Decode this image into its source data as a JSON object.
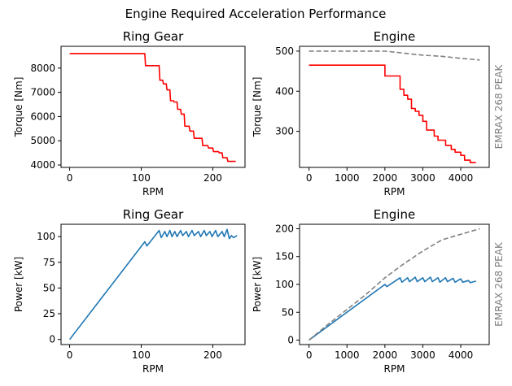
{
  "figure": {
    "suptitle": "Engine Required Acceleration Performance"
  },
  "chart_data": [
    {
      "id": "ring-torque",
      "type": "line",
      "title": "Ring Gear",
      "xlabel": "RPM",
      "ylabel": "Torque [Nm]",
      "xlim": [
        -12,
        245
      ],
      "ylim": [
        3900,
        8900
      ],
      "xticks": [
        0,
        100,
        200
      ],
      "yticks": [
        4000,
        5000,
        6000,
        7000,
        8000
      ],
      "side_label": "",
      "series": [
        {
          "color": "#ff0000",
          "dashed": false,
          "x": [
            0,
            105,
            106,
            125,
            126,
            130,
            131,
            135,
            136,
            140,
            141,
            145,
            146,
            150,
            151,
            155,
            156,
            160,
            161,
            167,
            168,
            173,
            174,
            185,
            186,
            193,
            194,
            200,
            201,
            208,
            209,
            213,
            214,
            220,
            221,
            224,
            225,
            232
          ],
          "y": [
            8600,
            8600,
            8100,
            8100,
            7500,
            7500,
            7350,
            7350,
            7100,
            7100,
            6650,
            6650,
            6600,
            6600,
            6300,
            6300,
            6100,
            6100,
            5600,
            5600,
            5400,
            5400,
            5100,
            5100,
            4800,
            4800,
            4700,
            4700,
            4550,
            4550,
            4500,
            4500,
            4300,
            4300,
            4150,
            4150,
            4150,
            4150
          ]
        }
      ]
    },
    {
      "id": "engine-torque",
      "type": "line",
      "title": "Engine",
      "xlabel": "RPM",
      "ylabel": "Torque [Nm]",
      "xlim": [
        -250,
        4750
      ],
      "ylim": [
        210,
        512
      ],
      "xticks": [
        0,
        1000,
        2000,
        3000,
        4000
      ],
      "yticks": [
        300,
        400,
        500
      ],
      "side_label": "EMRAX 268 PEAK",
      "series": [
        {
          "color": "#ff0000",
          "dashed": false,
          "x": [
            0,
            2000,
            2001,
            2400,
            2401,
            2500,
            2501,
            2600,
            2601,
            2700,
            2701,
            2800,
            2801,
            2900,
            2901,
            3000,
            3001,
            3100,
            3101,
            3300,
            3301,
            3400,
            3401,
            3600,
            3601,
            3750,
            3751,
            3850,
            3851,
            4000,
            4001,
            4100,
            4101,
            4250,
            4251,
            4400
          ],
          "y": [
            465,
            465,
            438,
            438,
            405,
            405,
            390,
            390,
            380,
            380,
            357,
            357,
            350,
            350,
            340,
            340,
            325,
            325,
            303,
            303,
            288,
            288,
            278,
            278,
            265,
            265,
            255,
            255,
            248,
            248,
            240,
            240,
            228,
            228,
            222,
            222
          ]
        },
        {
          "color": "#808080",
          "dashed": true,
          "x": [
            0,
            2000,
            2500,
            3000,
            3500,
            4000,
            4500
          ],
          "y": [
            500,
            500,
            495,
            490,
            487,
            482,
            478
          ]
        }
      ]
    },
    {
      "id": "ring-power",
      "type": "line",
      "title": "Ring Gear",
      "xlabel": "RPM",
      "ylabel": "Power [kW]",
      "xlim": [
        -12,
        245
      ],
      "ylim": [
        -5,
        112
      ],
      "xticks": [
        0,
        100,
        200
      ],
      "yticks": [
        0,
        25,
        50,
        75,
        100
      ],
      "side_label": "",
      "series": [
        {
          "color": "#1f77b4",
          "dashed": false,
          "x": [
            0,
            105,
            108,
            125,
            128,
            133,
            136,
            140,
            143,
            147,
            150,
            155,
            158,
            163,
            166,
            171,
            174,
            180,
            183,
            188,
            191,
            196,
            199,
            204,
            207,
            213,
            216,
            220,
            223,
            226,
            229,
            234
          ],
          "y": [
            0,
            95,
            91,
            106,
            99,
            105,
            100,
            106,
            100,
            105,
            100,
            106,
            101,
            105,
            100,
            106,
            101,
            105,
            100,
            106,
            101,
            105,
            100,
            106,
            100,
            105,
            100,
            107,
            98,
            101,
            99,
            101
          ]
        }
      ]
    },
    {
      "id": "engine-power",
      "type": "line",
      "title": "Engine",
      "xlabel": "RPM",
      "ylabel": "Power [kW]",
      "xlim": [
        -250,
        4750
      ],
      "ylim": [
        -8,
        208
      ],
      "xticks": [
        0,
        1000,
        2000,
        3000,
        4000
      ],
      "yticks": [
        0,
        50,
        100,
        150,
        200
      ],
      "side_label": "EMRAX 268 PEAK",
      "series": [
        {
          "color": "#1f77b4",
          "dashed": false,
          "x": [
            0,
            2000,
            2050,
            2400,
            2450,
            2600,
            2650,
            2800,
            2850,
            3000,
            3050,
            3200,
            3250,
            3400,
            3450,
            3600,
            3650,
            3800,
            3850,
            4000,
            4050,
            4200,
            4250,
            4400
          ],
          "y": [
            0,
            100,
            96,
            112,
            104,
            112,
            105,
            113,
            105,
            112,
            105,
            113,
            105,
            112,
            104,
            112,
            105,
            111,
            104,
            110,
            104,
            107,
            103,
            106
          ]
        },
        {
          "color": "#808080",
          "dashed": true,
          "x": [
            0,
            500,
            1000,
            1500,
            2000,
            2500,
            3000,
            3500,
            4000,
            4500
          ],
          "y": [
            0,
            28,
            55,
            82,
            112,
            137,
            160,
            180,
            190,
            200
          ]
        }
      ]
    }
  ]
}
